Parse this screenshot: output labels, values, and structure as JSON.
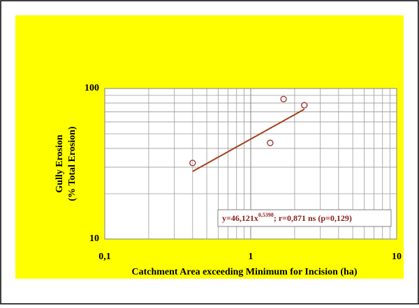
{
  "chart_data": {
    "type": "scatter",
    "xlabel": "Catchment Area exceeding Minimum for Incision (ha)",
    "ylabel": [
      "Gully Erosion",
      "(% Total Erosion)"
    ],
    "x": [
      0.4,
      1.36,
      1.68,
      2.33
    ],
    "series": [
      {
        "color": "#9b2a2a",
        "values": [
          32,
          43.5,
          85,
          77.4
        ]
      }
    ],
    "trendline": {
      "a": 46.121,
      "b": 0.5398,
      "color": "#a0401c"
    },
    "annotation": {
      "text": "y=46,121x",
      "exponent": "0,5398",
      "rest": "; r=0,871 ns (p=0,129)"
    },
    "xlim": [
      0.1,
      10
    ],
    "ylim": [
      10,
      100
    ],
    "xticks": [
      {
        "value": 0.1,
        "label": "0,1"
      },
      1,
      10
    ],
    "yticks": [
      10,
      100
    ],
    "xlog": true,
    "ylog": true,
    "grid": true,
    "minor_grid": true
  }
}
